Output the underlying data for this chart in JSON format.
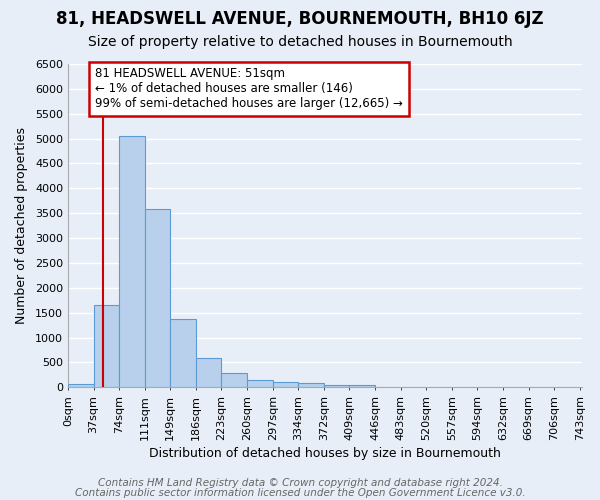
{
  "title": "81, HEADSWELL AVENUE, BOURNEMOUTH, BH10 6JZ",
  "subtitle": "Size of property relative to detached houses in Bournemouth",
  "xlabel": "Distribution of detached houses by size in Bournemouth",
  "ylabel": "Number of detached properties",
  "bar_values": [
    75,
    1650,
    5060,
    3580,
    1380,
    590,
    295,
    155,
    110,
    80,
    55,
    50,
    0,
    0,
    0,
    0,
    0,
    0,
    0,
    0
  ],
  "bar_labels": [
    "0sqm",
    "37sqm",
    "74sqm",
    "111sqm",
    "149sqm",
    "186sqm",
    "223sqm",
    "260sqm",
    "297sqm",
    "334sqm",
    "372sqm",
    "409sqm",
    "446sqm",
    "483sqm",
    "520sqm",
    "557sqm",
    "594sqm",
    "632sqm",
    "669sqm",
    "706sqm",
    "743sqm"
  ],
  "bar_color": "#b8d0eb",
  "bar_edge_color": "#5b9bd5",
  "ylim": [
    0,
    6500
  ],
  "yticks": [
    0,
    500,
    1000,
    1500,
    2000,
    2500,
    3000,
    3500,
    4000,
    4500,
    5000,
    5500,
    6000,
    6500
  ],
  "vline_color": "#cc0000",
  "annotation_text": "81 HEADSWELL AVENUE: 51sqm\n← 1% of detached houses are smaller (146)\n99% of semi-detached houses are larger (12,665) →",
  "annotation_box_color": "#ffffff",
  "annotation_box_edge": "#cc0000",
  "footer_line1": "Contains HM Land Registry data © Crown copyright and database right 2024.",
  "footer_line2": "Contains public sector information licensed under the Open Government Licence v3.0.",
  "bin_width": 37,
  "property_sqm": 51,
  "background_color": "#e8eef7",
  "grid_color": "#ffffff",
  "title_fontsize": 12,
  "subtitle_fontsize": 10,
  "axis_fontsize": 9,
  "tick_fontsize": 8,
  "footer_fontsize": 7.5
}
